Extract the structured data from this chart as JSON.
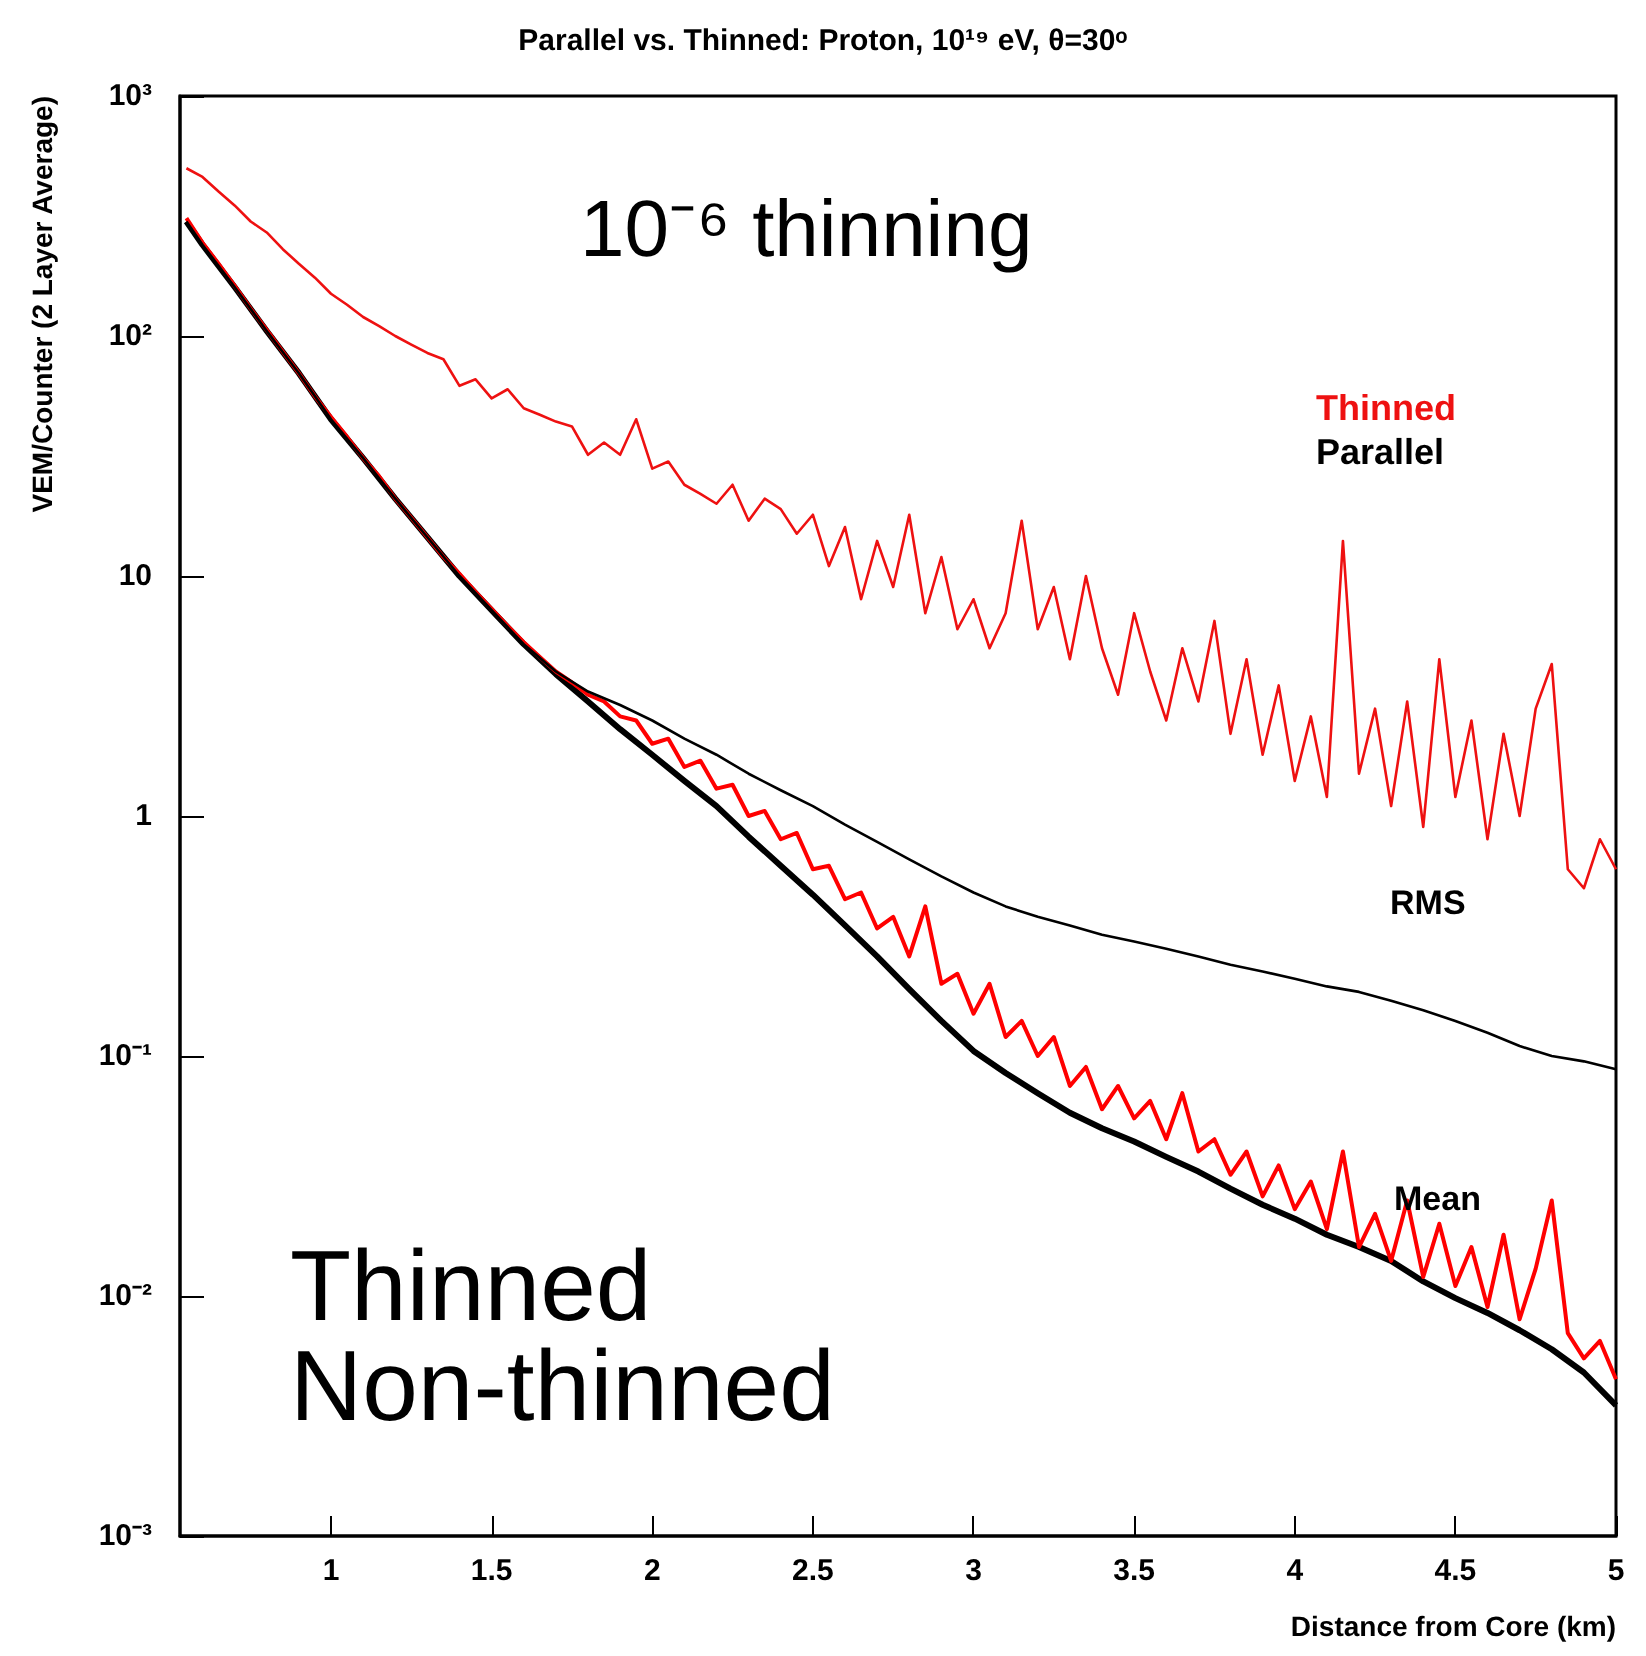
{
  "chart_data": {
    "type": "line",
    "title": "Parallel vs. Thinned: Proton, 10¹⁹ eV, θ=30ᵒ",
    "xlabel": "Distance from Core (km)",
    "ylabel": "VEM/Counter (2 Layer Average)",
    "annotations": [
      "10⁻⁶ thinning",
      "Thinned",
      "Non-thinned",
      "RMS",
      "Mean"
    ],
    "log": "y",
    "xlim": [
      0.53,
      5
    ],
    "ylim": [
      0.001,
      1000
    ],
    "xticks": [
      1,
      1.5,
      2,
      2.5,
      3,
      3.5,
      4,
      4.5,
      5
    ],
    "yticks": [
      {
        "value": 0.001,
        "label": "10⁻³"
      },
      {
        "value": 0.01,
        "label": "10⁻²"
      },
      {
        "value": 0.1,
        "label": "10⁻¹"
      },
      1,
      10,
      {
        "value": 100,
        "label": "10²"
      },
      {
        "value": 1000,
        "label": "10³"
      }
    ],
    "grid": false,
    "legend": "top right",
    "marker": "none",
    "line_style": "solid",
    "series": [
      {
        "name": "Thinned",
        "color": "#ee1111",
        "x": [
          0.55,
          0.6,
          0.65,
          0.7,
          0.75,
          0.8,
          0.85,
          0.9,
          0.95,
          1.0,
          1.05,
          1.1,
          1.15,
          1.2,
          1.25,
          1.3,
          1.35,
          1.4,
          1.45,
          1.5,
          1.55,
          1.6,
          1.65,
          1.7,
          1.75,
          1.8,
          1.85,
          1.9,
          1.95,
          2.0,
          2.05,
          2.1,
          2.15,
          2.2,
          2.25,
          2.3,
          2.35,
          2.4,
          2.45,
          2.5,
          2.55,
          2.6,
          2.65,
          2.7,
          2.75,
          2.8,
          2.85,
          2.9,
          2.95,
          3.0,
          3.05,
          3.1,
          3.15,
          3.2,
          3.25,
          3.3,
          3.35,
          3.4,
          3.45,
          3.5,
          3.55,
          3.6,
          3.65,
          3.7,
          3.75,
          3.8,
          3.85,
          3.9,
          3.95,
          4.0,
          4.05,
          4.1,
          4.15,
          4.2,
          4.25,
          4.3,
          4.35,
          4.4,
          4.45,
          4.5,
          4.55,
          4.6,
          4.65,
          4.7,
          4.75,
          4.8,
          4.85,
          4.9,
          4.95,
          5.0
        ],
        "values": [
          500,
          460,
          400,
          350,
          300,
          270,
          230,
          200,
          175,
          150,
          135,
          120,
          110,
          100,
          92,
          85,
          80,
          62,
          66,
          55,
          60,
          50,
          47,
          44,
          42,
          32,
          36,
          32,
          45,
          28,
          30,
          24,
          22,
          20,
          24,
          17,
          21,
          19,
          15,
          18,
          11,
          16,
          8,
          14,
          9,
          18,
          7,
          12,
          6,
          8,
          5,
          7,
          17,
          6,
          9,
          4.5,
          10,
          5,
          3.2,
          7,
          4,
          2.5,
          5,
          3,
          6.5,
          2.2,
          4.5,
          1.8,
          3.5,
          1.4,
          2.6,
          1.2,
          14,
          1.5,
          2.8,
          1.1,
          3,
          0.9,
          4.5,
          1.2,
          2.5,
          0.8,
          2.2,
          1.0,
          2.8,
          4.3,
          0.6,
          0.5,
          0.8,
          0.6
        ]
      },
      {
        "name": "Parallel",
        "color": "#000000",
        "x": [
          0.55,
          0.6,
          0.7,
          0.8,
          0.9,
          1.0,
          1.1,
          1.2,
          1.3,
          1.4,
          1.5,
          1.6,
          1.7,
          1.8,
          1.9,
          2.0,
          2.1,
          2.2,
          2.3,
          2.4,
          2.5,
          2.6,
          2.7,
          2.8,
          2.9,
          3.0,
          3.1,
          3.2,
          3.3,
          3.4,
          3.5,
          3.6,
          3.7,
          3.8,
          3.9,
          4.0,
          4.1,
          4.2,
          4.3,
          4.4,
          4.5,
          4.6,
          4.7,
          4.8,
          4.9,
          5.0
        ],
        "values": [
          300,
          240,
          160,
          105,
          70,
          45,
          31,
          21,
          14.5,
          10,
          7.2,
          5.2,
          4.0,
          3.3,
          2.9,
          2.5,
          2.1,
          1.8,
          1.5,
          1.28,
          1.1,
          0.92,
          0.78,
          0.66,
          0.56,
          0.48,
          0.42,
          0.38,
          0.35,
          0.32,
          0.3,
          0.28,
          0.26,
          0.24,
          0.225,
          0.21,
          0.195,
          0.185,
          0.17,
          0.155,
          0.14,
          0.125,
          0.11,
          0.1,
          0.095,
          0.088
        ]
      },
      {
        "color": "#ff0000",
        "x": [
          0.55,
          0.6,
          0.65,
          0.7,
          0.75,
          0.8,
          0.85,
          0.9,
          0.95,
          1.0,
          1.05,
          1.1,
          1.15,
          1.2,
          1.25,
          1.3,
          1.35,
          1.4,
          1.45,
          1.5,
          1.55,
          1.6,
          1.65,
          1.7,
          1.75,
          1.8,
          1.85,
          1.9,
          1.95,
          2.0,
          2.05,
          2.1,
          2.15,
          2.2,
          2.25,
          2.3,
          2.35,
          2.4,
          2.45,
          2.5,
          2.55,
          2.6,
          2.65,
          2.7,
          2.75,
          2.8,
          2.85,
          2.9,
          2.95,
          3.0,
          3.05,
          3.1,
          3.15,
          3.2,
          3.25,
          3.3,
          3.35,
          3.4,
          3.45,
          3.5,
          3.55,
          3.6,
          3.65,
          3.7,
          3.75,
          3.8,
          3.85,
          3.9,
          3.95,
          4.0,
          4.05,
          4.1,
          4.15,
          4.2,
          4.25,
          4.3,
          4.35,
          4.4,
          4.45,
          4.5,
          4.55,
          4.6,
          4.65,
          4.7,
          4.75,
          4.8,
          4.85,
          4.9,
          4.95,
          5.0
        ],
        "values": [
          310,
          245,
          200,
          162,
          130,
          106,
          86,
          70,
          56,
          46,
          38,
          31,
          26,
          21,
          17.5,
          14.5,
          12,
          10.2,
          8.6,
          7.3,
          6.2,
          5.3,
          4.6,
          4.0,
          3.6,
          3.2,
          3.0,
          2.6,
          2.5,
          2.0,
          2.1,
          1.6,
          1.7,
          1.3,
          1.35,
          1.0,
          1.05,
          0.8,
          0.85,
          0.6,
          0.62,
          0.45,
          0.48,
          0.34,
          0.38,
          0.26,
          0.42,
          0.2,
          0.22,
          0.15,
          0.2,
          0.12,
          0.14,
          0.1,
          0.12,
          0.075,
          0.09,
          0.06,
          0.075,
          0.055,
          0.065,
          0.045,
          0.07,
          0.04,
          0.045,
          0.032,
          0.04,
          0.026,
          0.035,
          0.023,
          0.03,
          0.019,
          0.04,
          0.016,
          0.022,
          0.014,
          0.025,
          0.012,
          0.02,
          0.011,
          0.016,
          0.009,
          0.018,
          0.008,
          0.013,
          0.025,
          0.007,
          0.0055,
          0.0065,
          0.0045
        ]
      },
      {
        "color": "#000000",
        "x": [
          0.55,
          0.6,
          0.7,
          0.8,
          0.9,
          1.0,
          1.1,
          1.2,
          1.3,
          1.4,
          1.5,
          1.6,
          1.7,
          1.8,
          1.9,
          2.0,
          2.1,
          2.2,
          2.3,
          2.4,
          2.5,
          2.6,
          2.7,
          2.8,
          2.9,
          3.0,
          3.1,
          3.2,
          3.3,
          3.4,
          3.5,
          3.6,
          3.7,
          3.8,
          3.9,
          4.0,
          4.1,
          4.2,
          4.3,
          4.4,
          4.5,
          4.6,
          4.7,
          4.8,
          4.9,
          5.0
        ],
        "values": [
          300,
          240,
          160,
          105,
          70,
          45,
          31,
          21,
          14.5,
          10,
          7.2,
          5.2,
          3.9,
          3.0,
          2.3,
          1.8,
          1.4,
          1.1,
          0.82,
          0.62,
          0.47,
          0.35,
          0.26,
          0.19,
          0.14,
          0.105,
          0.085,
          0.07,
          0.058,
          0.05,
          0.044,
          0.038,
          0.033,
          0.028,
          0.024,
          0.021,
          0.018,
          0.016,
          0.014,
          0.0115,
          0.0098,
          0.0085,
          0.0072,
          0.006,
          0.0048,
          0.0035
        ]
      }
    ]
  }
}
